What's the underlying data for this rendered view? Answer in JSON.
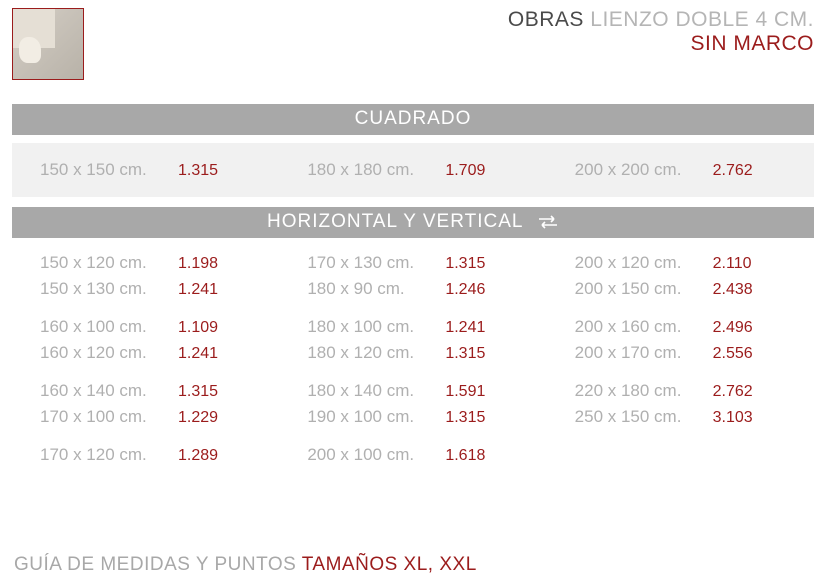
{
  "colors": {
    "accent": "#9b1c1c",
    "bar_bg": "#a8a8a8",
    "bar_text": "#ffffff",
    "band_bg": "#f1f1f1",
    "size_text": "#b0b0b0",
    "points_text": "#9b1c1c",
    "title_dark": "#4a4a4a",
    "title_light": "#b5b5b5",
    "page_bg": "#ffffff"
  },
  "typography": {
    "title_fontsize": 21,
    "bar_fontsize": 19,
    "entry_fontsize": 17,
    "points_fontsize": 16,
    "footer_fontsize": 19,
    "weight_light": 300,
    "weight_regular": 400,
    "weight_medium": 500
  },
  "header": {
    "line1_strong": "OBRAS",
    "line1_light": " LIENZO DOBLE 4 CM.",
    "line2": "SIN MARCO"
  },
  "sections": {
    "cuadrado": {
      "title": "CUADRADO",
      "items": [
        {
          "size": "150 x 150 cm.",
          "points": "1.315"
        },
        {
          "size": "180 x 180 cm.",
          "points": "1.709"
        },
        {
          "size": "200 x 200 cm.",
          "points": "2.762"
        }
      ]
    },
    "hv": {
      "title": "HORIZONTAL Y VERTICAL",
      "columns": [
        [
          {
            "size": "150 x 120 cm.",
            "points": "1.198"
          },
          {
            "size": "150 x 130 cm.",
            "points": "1.241"
          },
          null,
          {
            "size": "160 x 100 cm.",
            "points": "1.109"
          },
          {
            "size": "160 x 120 cm.",
            "points": "1.241"
          },
          null,
          {
            "size": "160 x 140 cm.",
            "points": "1.315"
          },
          {
            "size": "170 x 100 cm.",
            "points": "1.229"
          },
          null,
          {
            "size": "170 x 120 cm.",
            "points": "1.289"
          }
        ],
        [
          {
            "size": "170 x 130 cm.",
            "points": "1.315"
          },
          {
            "size": "180 x 90 cm.",
            "points": "1.246"
          },
          null,
          {
            "size": "180 x 100 cm.",
            "points": "1.241"
          },
          {
            "size": "180 x 120 cm.",
            "points": "1.315"
          },
          null,
          {
            "size": "180 x 140 cm.",
            "points": "1.591"
          },
          {
            "size": "190 x 100 cm.",
            "points": "1.315"
          },
          null,
          {
            "size": "200 x 100 cm.",
            "points": "1.618"
          }
        ],
        [
          {
            "size": "200 x 120 cm.",
            "points": "2.110"
          },
          {
            "size": "200 x 150 cm.",
            "points": "2.438"
          },
          null,
          {
            "size": "200 x 160 cm.",
            "points": "2.496"
          },
          {
            "size": "200 x 170 cm.",
            "points": "2.556"
          },
          null,
          {
            "size": "220 x 180 cm.",
            "points": "2.762"
          },
          {
            "size": "250 x 150 cm.",
            "points": "3.103"
          }
        ]
      ]
    }
  },
  "footer": {
    "text_plain": "GUÍA DE MEDIDAS Y PUNTOS ",
    "text_accent": "TAMAÑOS XL, XXL"
  }
}
